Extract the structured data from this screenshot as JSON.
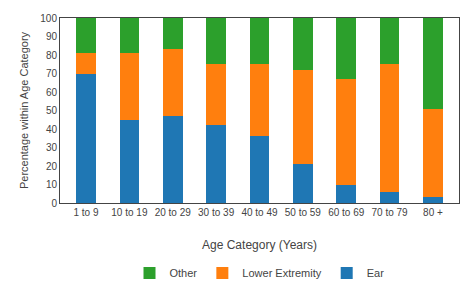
{
  "chart_data": {
    "type": "bar",
    "stacked": true,
    "xlabel": "Age Category (Years)",
    "ylabel": "Percentage within Age Category",
    "categories": [
      "1 to 9",
      "10 to 19",
      "20 to 29",
      "30 to 39",
      "40 to 49",
      "50 to 59",
      "60 to 69",
      "70 to 79",
      "80 +"
    ],
    "series": [
      {
        "name": "Ear",
        "values": [
          70,
          45,
          47,
          42,
          36,
          21,
          10,
          6,
          3
        ]
      },
      {
        "name": "Lower Extremity",
        "values": [
          11,
          36,
          36,
          33,
          39,
          51,
          57,
          69,
          48
        ]
      },
      {
        "name": "Other",
        "values": [
          19,
          19,
          17,
          25,
          25,
          28,
          33,
          25,
          49
        ]
      }
    ],
    "ylim": [
      0,
      100
    ],
    "yticks": [
      0,
      10,
      20,
      30,
      40,
      50,
      60,
      70,
      80,
      90,
      100
    ],
    "grid": false,
    "legend": "bottom"
  }
}
